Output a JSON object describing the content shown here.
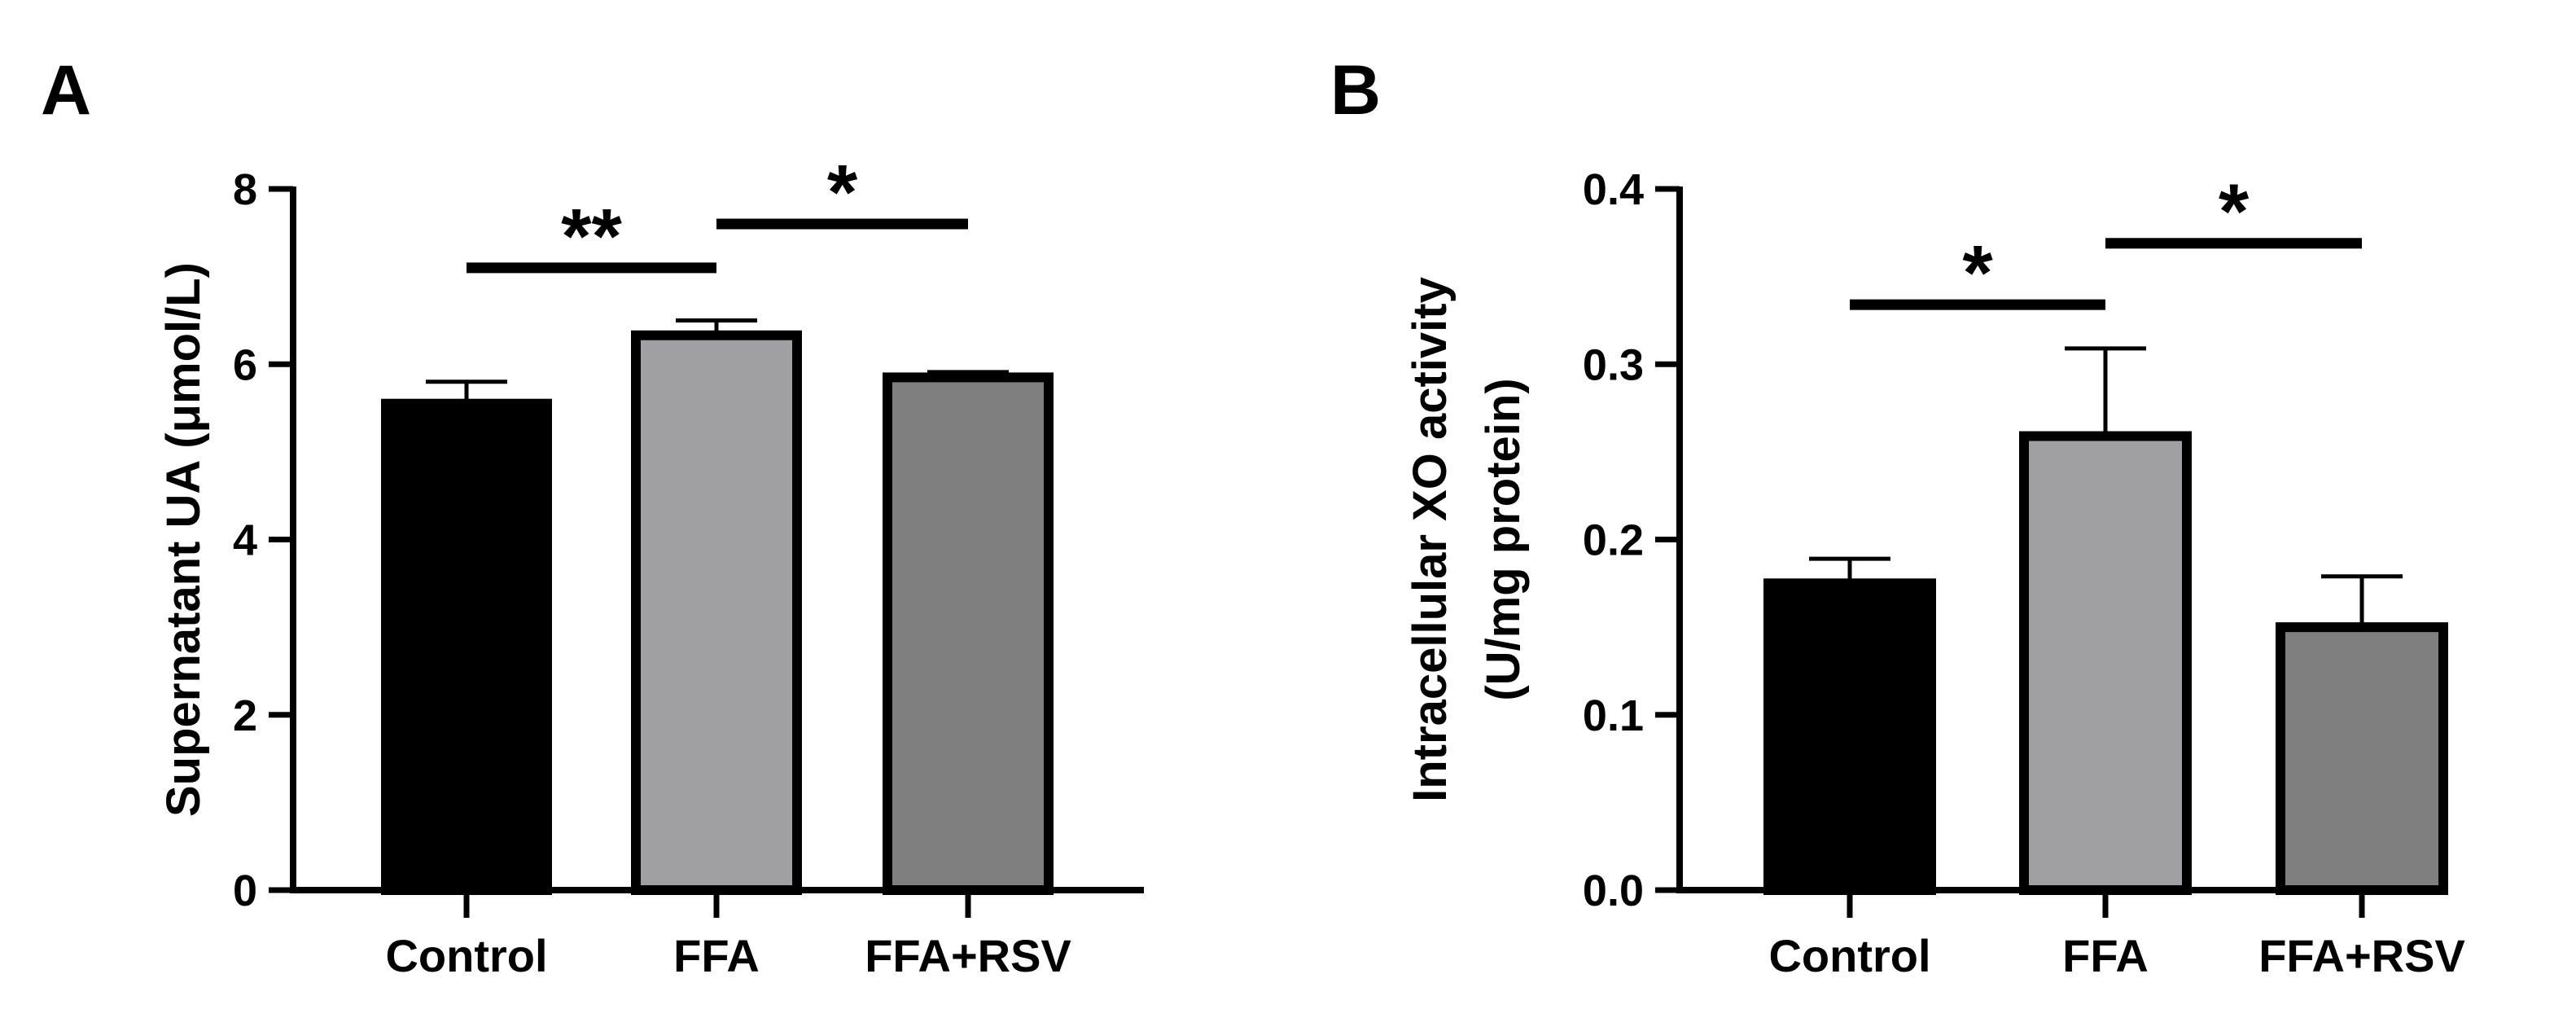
{
  "chart_data": [
    {
      "type": "bar",
      "panel_label": "A",
      "categories": [
        "Control",
        "FFA",
        "FFA+RSV"
      ],
      "values": [
        5.55,
        6.33,
        5.85
      ],
      "errors": [
        0.25,
        0.17,
        0.06
      ],
      "bar_colors": [
        "#000000",
        "#a09fa4",
        "#7f7f7f"
      ],
      "ylabel": "Supernatant UA (μmol/L)",
      "ylim": [
        0,
        8
      ],
      "yticks": [
        "0",
        "2",
        "4",
        "6",
        "8"
      ],
      "significance": [
        {
          "from": "Control",
          "to": "FFA",
          "label": "**",
          "y": 7.1
        },
        {
          "from": "FFA",
          "to": "FFA+RSV",
          "label": "*",
          "y": 7.6
        }
      ]
    },
    {
      "type": "bar",
      "panel_label": "B",
      "categories": [
        "Control",
        "FFA",
        "FFA+RSV"
      ],
      "values": [
        0.175,
        0.259,
        0.15
      ],
      "errors": [
        0.014,
        0.05,
        0.029
      ],
      "bar_colors": [
        "#000000",
        "#a09fa4",
        "#7f7f7f"
      ],
      "ylabel": "Intracellular XO activity",
      "ylabel2": "(U/mg protein)",
      "ylim": [
        0,
        0.4
      ],
      "yticks": [
        "0.0",
        "0.1",
        "0.2",
        "0.3",
        "0.4"
      ],
      "significance": [
        {
          "from": "Control",
          "to": "FFA",
          "label": "*",
          "y": 0.334
        },
        {
          "from": "FFA",
          "to": "FFA+RSV",
          "label": "*",
          "y": 0.369
        }
      ]
    }
  ]
}
